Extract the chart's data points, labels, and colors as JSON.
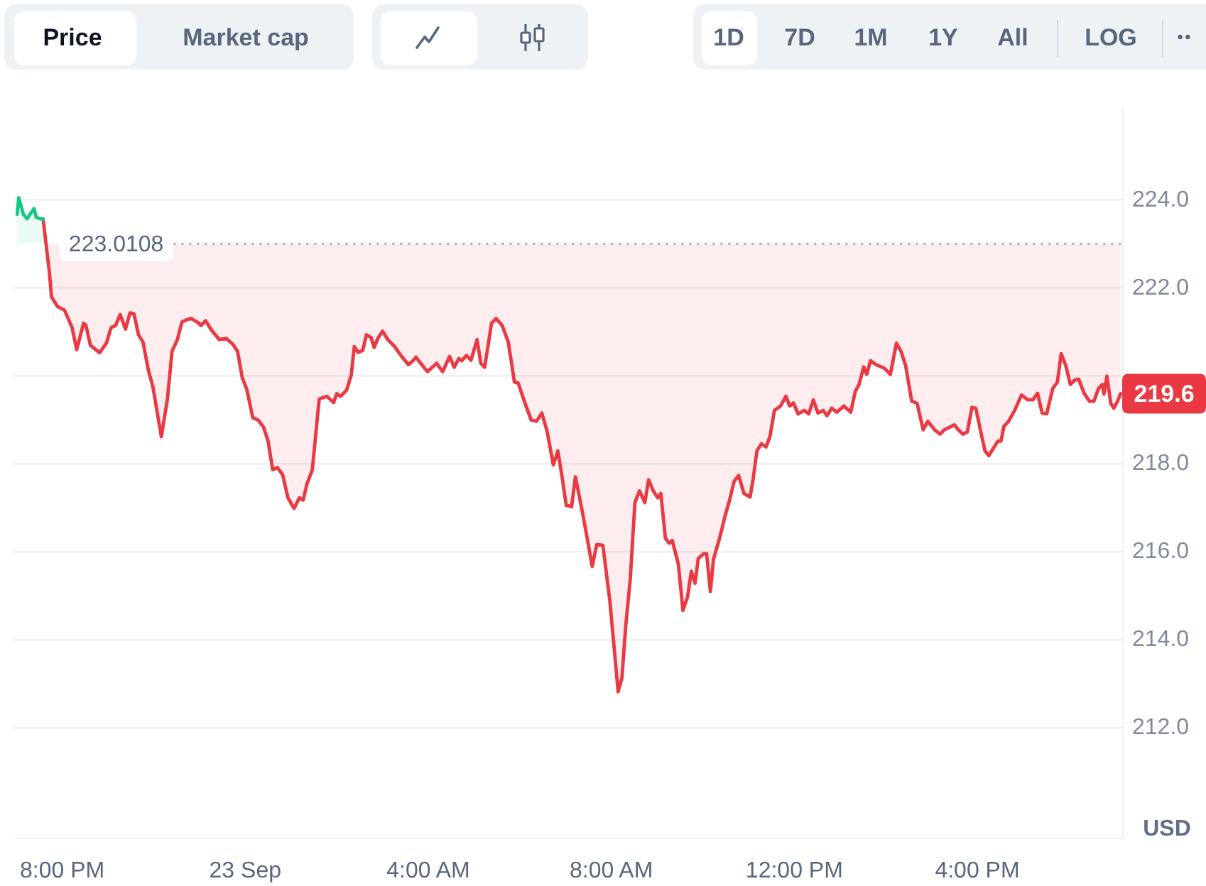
{
  "chart_data": {
    "type": "line",
    "annotations": [
      "Price",
      "Market cap",
      "1D",
      "7D",
      "1M",
      "1Y",
      "All",
      "LOG",
      "219.6"
    ],
    "xlim": [
      "--09-22T18:56",
      "--09-23T19:10"
    ],
    "xticks": [
      {
        "value": "--09-22T20:00",
        "label": "8:00 PM"
      },
      {
        "value": "--09-23T00:00",
        "label": "23 Sep"
      },
      {
        "value": "--09-23T04:00",
        "label": "4:00 AM"
      },
      {
        "value": "--09-23T08:00",
        "label": "8:00 AM"
      },
      {
        "value": "--09-23T12:00",
        "label": "12:00 PM"
      },
      {
        "value": "--09-23T16:00",
        "label": "4:00 PM"
      }
    ],
    "ylim": [
      209.5,
      226.1
    ],
    "yticks": [
      {
        "value": 212,
        "label": "212.0"
      },
      {
        "value": 214,
        "label": "214.0"
      },
      {
        "value": 216,
        "label": "216.0"
      },
      {
        "value": 218,
        "label": "218.0"
      },
      {
        "value": 220,
        "label": null
      },
      {
        "value": 222,
        "label": "222.0"
      },
      {
        "value": 224,
        "label": "224.0"
      }
    ],
    "ylabel": "USD",
    "grid": "y",
    "ref_lines": [
      {
        "axis": "y",
        "value": 223.0108,
        "label": "223.0108",
        "color": "#a6b0c3",
        "line_style": "dotted"
      }
    ],
    "series": [
      {
        "color": "#16c784",
        "x": [
          "--09-22T19:01",
          "--09-22T19:03",
          "--09-22T19:09",
          "--09-22T19:14",
          "--09-22T19:19",
          "--09-22T19:23",
          "--09-22T19:26",
          "--09-22T19:31",
          "--09-22T19:35"
        ],
        "values": [
          223.68,
          224.06,
          223.68,
          223.58,
          223.71,
          223.81,
          223.61,
          223.58,
          223.57
        ]
      },
      {
        "color": "#ea3943",
        "x": [
          "--09-22T19:35",
          "--09-22T19:43",
          "--09-22T19:46",
          "--09-22T19:54",
          "--09-22T20:03",
          "--09-22T20:13",
          "--09-22T20:19",
          "--09-22T20:28",
          "--09-22T20:31",
          "--09-22T20:37",
          "--09-22T20:49",
          "--09-22T20:58",
          "--09-22T21:04",
          "--09-22T21:10",
          "--09-22T21:16",
          "--09-22T21:23",
          "--09-22T21:29",
          "--09-22T21:34",
          "--09-22T21:40",
          "--09-22T21:46",
          "--09-22T21:53",
          "--09-22T21:59",
          "--09-22T22:10",
          "--09-22T22:18",
          "--09-22T22:24",
          "--09-22T22:31",
          "--09-22T22:37",
          "--09-22T22:43",
          "--09-22T22:49",
          "--09-22T22:58",
          "--09-22T23:02",
          "--09-22T23:08",
          "--09-22T23:16",
          "--09-22T23:26",
          "--09-22T23:35",
          "--09-22T23:44",
          "--09-22T23:50",
          "--09-22T23:56",
          "--09-23T00:02",
          "--09-23T00:10",
          "--09-23T00:17",
          "--09-23T00:24",
          "--09-23T00:30",
          "--09-23T00:36",
          "--09-23T00:42",
          "--09-23T00:49",
          "--09-23T00:56",
          "--09-23T01:04",
          "--09-23T01:11",
          "--09-23T01:16",
          "--09-23T01:21",
          "--09-23T01:28",
          "--09-23T01:37",
          "--09-23T01:47",
          "--09-23T01:56",
          "--09-23T02:00",
          "--09-23T02:05",
          "--09-23T02:13",
          "--09-23T02:19",
          "--09-23T02:23",
          "--09-23T02:28",
          "--09-23T02:34",
          "--09-23T02:39",
          "--09-23T02:45",
          "--09-23T02:49",
          "--09-23T02:54",
          "--09-23T03:00",
          "--09-23T03:07",
          "--09-23T03:16",
          "--09-23T03:25",
          "--09-23T03:34",
          "--09-23T03:40",
          "--09-23T03:44",
          "--09-23T03:50",
          "--09-23T03:59",
          "--09-23T04:11",
          "--09-23T04:19",
          "--09-23T04:28",
          "--09-23T04:34",
          "--09-23T04:40",
          "--09-23T04:44",
          "--09-23T04:50",
          "--09-23T04:56",
          "--09-23T05:04",
          "--09-23T05:09",
          "--09-23T05:14",
          "--09-23T05:23",
          "--09-23T05:29",
          "--09-23T05:37",
          "--09-23T05:45",
          "--09-23T05:53",
          "--09-23T05:58",
          "--09-23T06:07",
          "--09-23T06:15",
          "--09-23T06:22",
          "--09-23T06:29",
          "--09-23T06:36",
          "--09-23T06:44",
          "--09-23T06:50",
          "--09-23T06:55",
          "--09-23T07:01",
          "--09-23T07:08",
          "--09-23T07:13",
          "--09-23T07:21",
          "--09-23T07:29",
          "--09-23T07:35",
          "--09-23T07:41",
          "--09-23T07:49",
          "--09-23T07:58",
          "--09-23T08:04",
          "--09-23T08:09",
          "--09-23T08:14",
          "--09-23T08:19",
          "--09-23T08:25",
          "--09-23T08:31",
          "--09-23T08:37",
          "--09-23T08:44",
          "--09-23T08:49",
          "--09-23T08:55",
          "--09-23T09:01",
          "--09-23T09:05",
          "--09-23T09:11",
          "--09-23T09:16",
          "--09-23T09:20",
          "--09-23T09:28",
          "--09-23T09:34",
          "--09-23T09:40",
          "--09-23T09:45",
          "--09-23T09:50",
          "--09-23T09:54",
          "--09-23T10:01",
          "--09-23T10:05",
          "--09-23T10:10",
          "--09-23T10:14",
          "--09-23T10:22",
          "--09-23T10:29",
          "--09-23T10:35",
          "--09-23T10:41",
          "--09-23T10:47",
          "--09-23T10:54",
          "--09-23T11:02",
          "--09-23T11:06",
          "--09-23T11:11",
          "--09-23T11:17",
          "--09-23T11:23",
          "--09-23T11:28",
          "--09-23T11:34",
          "--09-23T11:42",
          "--09-23T11:49",
          "--09-23T11:54",
          "--09-23T11:59",
          "--09-23T12:05",
          "--09-23T12:13",
          "--09-23T12:19",
          "--09-23T12:25",
          "--09-23T12:31",
          "--09-23T12:38",
          "--09-23T12:43",
          "--09-23T12:49",
          "--09-23T12:56",
          "--09-23T13:05",
          "--09-23T13:14",
          "--09-23T13:20",
          "--09-23T13:25",
          "--09-23T13:31",
          "--09-23T13:35",
          "--09-23T13:40",
          "--09-23T13:47",
          "--09-23T13:58",
          "--09-23T14:06",
          "--09-23T14:14",
          "--09-23T14:20",
          "--09-23T14:26",
          "--09-23T14:34",
          "--09-23T14:41",
          "--09-23T14:49",
          "--09-23T14:55",
          "--09-23T15:04",
          "--09-23T15:11",
          "--09-23T15:17",
          "--09-23T15:30",
          "--09-23T15:35",
          "--09-23T15:41",
          "--09-23T15:47",
          "--09-23T15:53",
          "--09-23T15:58",
          "--09-23T16:04",
          "--09-23T16:10",
          "--09-23T16:15",
          "--09-23T16:23",
          "--09-23T16:27",
          "--09-23T16:31",
          "--09-23T16:35",
          "--09-23T16:41",
          "--09-23T16:49",
          "--09-23T16:58",
          "--09-23T17:06",
          "--09-23T17:13",
          "--09-23T17:19",
          "--09-23T17:25",
          "--09-23T17:31",
          "--09-23T17:39",
          "--09-23T17:45",
          "--09-23T17:50",
          "--09-23T17:56",
          "--09-23T18:02",
          "--09-23T18:08",
          "--09-23T18:13",
          "--09-23T18:20",
          "--09-23T18:27",
          "--09-23T18:33",
          "--09-23T18:39",
          "--09-23T18:44",
          "--09-23T18:46",
          "--09-23T18:50",
          "--09-23T18:55",
          "--09-23T18:59",
          "--09-23T19:04",
          "--09-23T19:08"
        ],
        "values": [
          223.57,
          222.39,
          221.8,
          221.58,
          221.5,
          221.1,
          220.6,
          221.2,
          221.16,
          220.7,
          220.53,
          220.75,
          221.1,
          221.15,
          221.4,
          221.07,
          221.44,
          221.42,
          220.94,
          220.77,
          220.13,
          219.75,
          218.62,
          219.48,
          220.56,
          220.83,
          221.23,
          221.28,
          221.31,
          221.22,
          221.15,
          221.26,
          221.04,
          220.83,
          220.86,
          220.72,
          220.56,
          219.97,
          219.7,
          219.05,
          219.0,
          218.84,
          218.52,
          217.87,
          217.92,
          217.76,
          217.23,
          216.99,
          217.23,
          217.18,
          217.55,
          217.87,
          219.48,
          219.54,
          219.4,
          219.6,
          219.54,
          219.68,
          220.02,
          220.67,
          220.54,
          220.58,
          220.94,
          220.88,
          220.65,
          220.86,
          221.02,
          220.83,
          220.67,
          220.45,
          220.26,
          220.35,
          220.43,
          220.29,
          220.1,
          220.29,
          220.1,
          220.45,
          220.2,
          220.4,
          220.35,
          220.47,
          220.36,
          220.83,
          220.29,
          220.2,
          221.2,
          221.31,
          221.15,
          220.77,
          219.86,
          219.84,
          219.38,
          219.0,
          218.97,
          219.16,
          218.73,
          217.98,
          218.3,
          217.76,
          217.06,
          217.03,
          217.71,
          217.01,
          216.26,
          215.67,
          216.17,
          216.15,
          214.91,
          213.78,
          212.82,
          213.14,
          214.32,
          215.4,
          217.12,
          217.39,
          217.12,
          217.64,
          217.39,
          217.23,
          217.33,
          216.31,
          216.2,
          216.26,
          215.72,
          214.67,
          214.97,
          215.56,
          215.29,
          215.85,
          215.96,
          215.96,
          215.1,
          215.83,
          216.31,
          216.8,
          217.17,
          217.6,
          217.74,
          217.33,
          217.25,
          217.65,
          218.3,
          218.46,
          218.39,
          218.62,
          219.22,
          219.32,
          219.54,
          219.32,
          219.39,
          219.14,
          219.22,
          219.14,
          219.46,
          219.16,
          219.22,
          219.1,
          219.27,
          219.18,
          219.32,
          219.18,
          219.65,
          219.81,
          220.21,
          220.04,
          220.35,
          220.26,
          220.18,
          220.04,
          220.75,
          220.56,
          220.24,
          219.43,
          219.38,
          218.78,
          218.97,
          218.78,
          218.68,
          218.78,
          218.89,
          218.78,
          218.68,
          218.73,
          219.29,
          219.27,
          218.78,
          218.3,
          218.19,
          218.41,
          218.52,
          218.52,
          218.86,
          218.97,
          219.22,
          219.57,
          219.46,
          219.46,
          219.61,
          219.16,
          219.14,
          219.72,
          219.86,
          220.51,
          220.24,
          219.81,
          219.91,
          219.93,
          219.61,
          219.43,
          219.43,
          219.72,
          219.81,
          219.59,
          220.0,
          219.38,
          219.27,
          219.43,
          219.6
        ]
      }
    ]
  }
}
